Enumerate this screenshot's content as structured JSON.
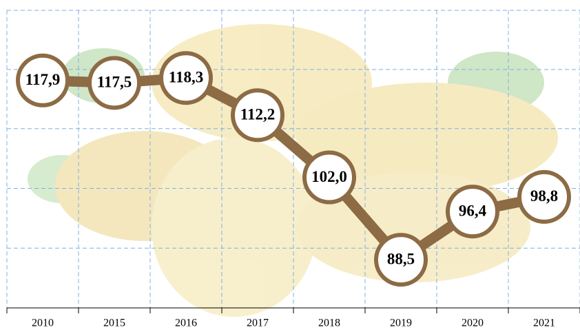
{
  "chart_data": {
    "type": "line",
    "categories": [
      "2010",
      "2015",
      "2016",
      "2017",
      "2018",
      "2019",
      "2020",
      "2021"
    ],
    "values": [
      117.9,
      117.5,
      118.3,
      112.2,
      102.0,
      88.5,
      96.4,
      98.8
    ],
    "value_labels": [
      "117,9",
      "117,5",
      "118,3",
      "112,2",
      "102,0",
      "88,5",
      "96,4",
      "98,8"
    ],
    "color": "#8c6b45",
    "ylim": [
      80.6,
      129.4
    ],
    "yticks": [
      90.4,
      100.2,
      110,
      119.7,
      129.4
    ],
    "show_ytick_labels": false,
    "grid": true
  }
}
